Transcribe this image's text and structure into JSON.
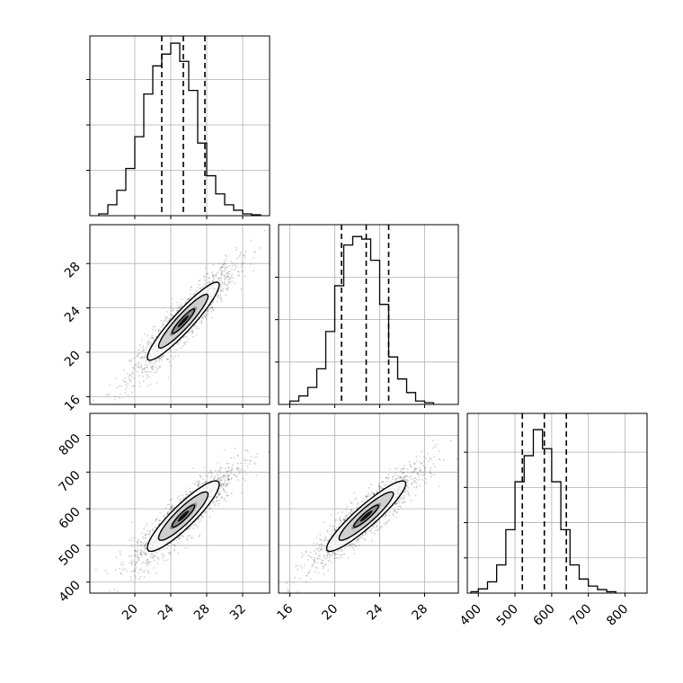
{
  "chart_data": {
    "type": "corner",
    "grid": true,
    "parameters": [
      "",
      "",
      ""
    ],
    "params": [
      {
        "range": [
          15,
          35
        ],
        "ticks": [
          20,
          24,
          28,
          32
        ],
        "tick_labels": [
          "20",
          "24",
          "28",
          "32"
        ],
        "quantiles": [
          23.0,
          25.4,
          27.8
        ],
        "hist": {
          "edges": [
            16,
            17,
            18,
            19,
            20,
            21,
            22,
            23,
            24,
            25,
            26,
            27,
            28,
            29,
            30,
            31,
            32,
            33,
            34
          ],
          "counts": [
            2,
            12,
            28,
            52,
            87,
            134,
            165,
            178,
            190,
            170,
            138,
            80,
            44,
            24,
            12,
            6,
            2,
            1
          ],
          "ymax": 198,
          "yticks": [
            50,
            100,
            150
          ]
        }
      },
      {
        "range": [
          15,
          31
        ],
        "ticks": [
          16,
          20,
          24,
          28
        ],
        "tick_labels": [
          "16",
          "20",
          "24",
          "28"
        ],
        "quantiles": [
          20.6,
          22.8,
          24.8
        ],
        "hist": {
          "edges": [
            16,
            16.8,
            17.6,
            18.4,
            19.2,
            20,
            20.8,
            21.6,
            22.4,
            23.2,
            24,
            24.8,
            25.6,
            26.4,
            27.2,
            28,
            28.8
          ],
          "counts": [
            4,
            10,
            20,
            42,
            86,
            140,
            188,
            198,
            195,
            170,
            118,
            56,
            30,
            14,
            4,
            2
          ],
          "ymax": 212,
          "yticks": [
            50,
            100,
            150
          ]
        }
      },
      {
        "range": [
          370,
          860
        ],
        "ticks": [
          400,
          500,
          600,
          700,
          800
        ],
        "tick_labels": [
          "400",
          "500",
          "600",
          "700",
          "800"
        ],
        "quantiles": [
          520,
          580,
          640
        ],
        "hist": {
          "edges": [
            380,
            400,
            425,
            450,
            475,
            500,
            525,
            550,
            575,
            600,
            625,
            650,
            675,
            700,
            725,
            750,
            775
          ],
          "counts": [
            2,
            6,
            16,
            40,
            90,
            158,
            195,
            232,
            205,
            158,
            90,
            40,
            20,
            10,
            5,
            2
          ],
          "ymax": 255,
          "yticks": [
            50,
            100,
            150,
            200
          ]
        }
      }
    ],
    "pairs": [
      {
        "x": 0,
        "y": 1,
        "yticks": [
          16,
          20,
          24,
          28
        ],
        "ytick_labels": [
          "16",
          "20",
          "24",
          "28"
        ],
        "y_range": [
          15.3,
          31.5
        ],
        "center": [
          25.4,
          22.8
        ],
        "sx": 2.5,
        "sy": 2.2,
        "rho": 0.93
      },
      {
        "x": 0,
        "y": 2,
        "yticks": [
          400,
          500,
          600,
          700,
          800
        ],
        "ytick_labels": [
          "400",
          "500",
          "600",
          "700",
          "800"
        ],
        "y_range": [
          370,
          860
        ],
        "center": [
          25.4,
          580
        ],
        "sx": 2.5,
        "sy": 60,
        "rho": 0.9
      },
      {
        "x": 1,
        "y": 2,
        "center": [
          22.8,
          580
        ],
        "sx": 2.2,
        "sy": 60,
        "rho": 0.92
      }
    ],
    "contour_levels": [
      0.5,
      1.1,
      1.6
    ]
  }
}
